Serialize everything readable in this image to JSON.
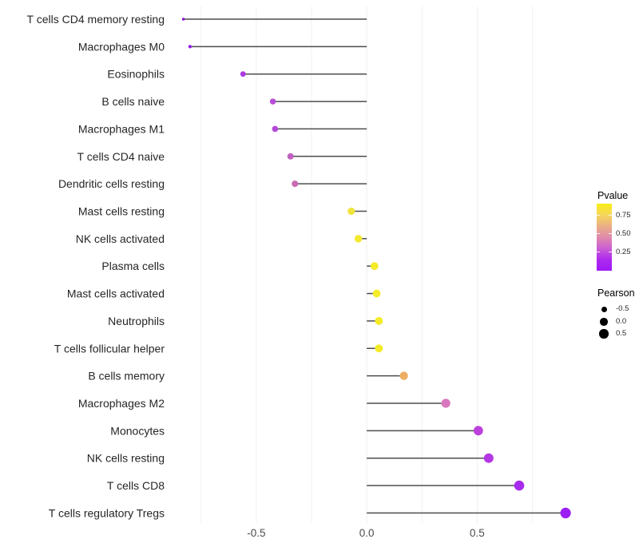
{
  "chart_data": {
    "type": "lollipop",
    "title": "",
    "xlabel": "",
    "ylabel": "",
    "xlim": [
      -0.89,
      0.925
    ],
    "x_ticks": [
      {
        "value": -0.5,
        "label": "-0.5"
      },
      {
        "value": 0.0,
        "label": "0.0"
      },
      {
        "value": 0.5,
        "label": "0.5"
      }
    ],
    "gridline_values": [
      -0.75,
      -0.5,
      -0.25,
      0.0,
      0.25,
      0.5,
      0.75
    ],
    "grid_on": true,
    "legend_position": "right",
    "baseline_value": 0.0,
    "rows": [
      {
        "label": "T cells CD4 memory resting",
        "pearson": -0.83,
        "dot_color": "#8812D6",
        "dot_d": 3.4
      },
      {
        "label": "Macrophages M0",
        "pearson": -0.8,
        "dot_color": "#9417E3",
        "dot_d": 4.2
      },
      {
        "label": "Eosinophils",
        "pearson": -0.56,
        "dot_color": "#AD39DF",
        "dot_d": 6.8
      },
      {
        "label": "B cells naive",
        "pearson": -0.425,
        "dot_color": "#B84ED5",
        "dot_d": 7.5
      },
      {
        "label": "Macrophages M1",
        "pearson": -0.415,
        "dot_color": "#B449D9",
        "dot_d": 7.6
      },
      {
        "label": "T cells CD4 naive",
        "pearson": -0.345,
        "dot_color": "#C161C1",
        "dot_d": 8.0
      },
      {
        "label": "Dendritic cells resting",
        "pearson": -0.325,
        "dot_color": "#C86BB3",
        "dot_d": 8.1
      },
      {
        "label": "Mast cells resting",
        "pearson": -0.07,
        "dot_color": "#F0E440",
        "dot_d": 9.3
      },
      {
        "label": "NK cells activated",
        "pearson": -0.038,
        "dot_color": "#F3E930",
        "dot_d": 9.5
      },
      {
        "label": "Plasma cells",
        "pearson": 0.035,
        "dot_color": "#F5EB28",
        "dot_d": 9.8
      },
      {
        "label": "Mast cells activated",
        "pearson": 0.045,
        "dot_color": "#F5EB28",
        "dot_d": 9.8
      },
      {
        "label": "Neutrophils",
        "pearson": 0.055,
        "dot_color": "#F5EB28",
        "dot_d": 9.9
      },
      {
        "label": "T cells follicular helper",
        "pearson": 0.055,
        "dot_color": "#F5EB28",
        "dot_d": 9.9
      },
      {
        "label": "B cells memory",
        "pearson": 0.168,
        "dot_color": "#EDAE63",
        "dot_d": 10.4
      },
      {
        "label": "Macrophages M2",
        "pearson": 0.358,
        "dot_color": "#D876BE",
        "dot_d": 11.2
      },
      {
        "label": "Monocytes",
        "pearson": 0.505,
        "dot_color": "#BC41DC",
        "dot_d": 11.8
      },
      {
        "label": "NK cells resting",
        "pearson": 0.552,
        "dot_color": "#B437E4",
        "dot_d": 12.0
      },
      {
        "label": "T cells CD8",
        "pearson": 0.69,
        "dot_color": "#A72BED",
        "dot_d": 12.6
      },
      {
        "label": "T cells regulatory  Tregs",
        "pearson": 0.9,
        "dot_color": "#9C1EF4",
        "dot_d": 13.2
      }
    ],
    "colors": {
      "stick": "#4D4D4D",
      "gridline": "#F0F0F0",
      "axis_tick_text": "#4D4D4D",
      "y_label_text": "#262626",
      "background": "#FFFFFF"
    }
  },
  "legend": {
    "pvalue": {
      "title": "Pvalue",
      "ticks": [
        "0.75",
        "0.50",
        "0.25"
      ],
      "gradient_top_to_bottom": [
        "#F9ED16",
        "#F5D75B",
        "#EBAF85",
        "#DF8BAB",
        "#CB5FD3",
        "#AC2BEE",
        "#A018F6"
      ]
    },
    "pearson": {
      "title": "Pearson",
      "items": [
        {
          "label": "-0.5",
          "d": 7.0
        },
        {
          "label": "0.0",
          "d": 9.5
        },
        {
          "label": "0.5",
          "d": 11.5
        }
      ]
    }
  }
}
